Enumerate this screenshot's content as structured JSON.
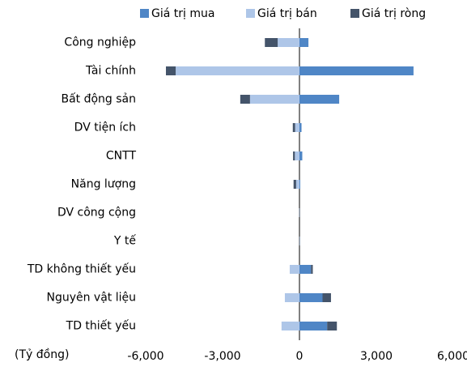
{
  "chart_data": {
    "type": "bar",
    "orientation": "horizontal",
    "x_axis_label": "(Tỷ đồng)",
    "categories": [
      "Công nghiệp",
      "Tài chính",
      "Bất động sản",
      "DV tiện ích",
      "CNTT",
      "Năng lượng",
      "DV công cộng",
      "Y tế",
      "TD không thiết yếu",
      "Nguyên vật liệu",
      "TD thiết yếu"
    ],
    "series": [
      {
        "name": "Giá trị mua",
        "color": "#4f86c6",
        "values": [
          350,
          4450,
          1550,
          80,
          110,
          30,
          5,
          10,
          450,
          900,
          1080
        ]
      },
      {
        "name": "Giá trị bán",
        "color": "#aec6e8",
        "values": [
          -850,
          -4830,
          -1930,
          -170,
          -180,
          -130,
          -10,
          -5,
          -380,
          -570,
          -700
        ]
      },
      {
        "name": "Giá trị ròng",
        "color": "#44546a",
        "values": [
          -500,
          -380,
          -380,
          -90,
          -70,
          -100,
          -5,
          5,
          70,
          330,
          380
        ]
      }
    ],
    "xlim": [
      -6000,
      6000
    ],
    "xticks": [
      {
        "value": -6000,
        "label": "-6,000"
      },
      {
        "value": -3000,
        "label": "-3,000"
      },
      0,
      {
        "value": 3000,
        "label": "3,000"
      },
      {
        "value": 6000,
        "label": "6,000"
      }
    ],
    "legend": "top",
    "grid": false
  }
}
